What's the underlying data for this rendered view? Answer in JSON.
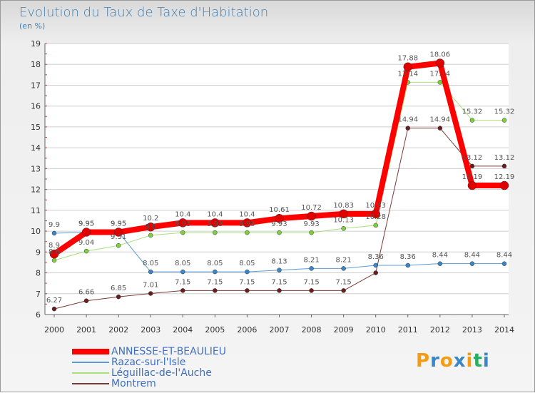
{
  "header": {
    "title": "Evolution du Taux de Taxe d'Habitation",
    "unit": "(en %)"
  },
  "colors": {
    "title": "#3f80b6",
    "axis_text": "#333333",
    "label_text": "#555555",
    "grid": "#cfcfcf"
  },
  "chart_data": {
    "type": "line",
    "x": [
      2000,
      2001,
      2002,
      2003,
      2004,
      2005,
      2006,
      2007,
      2008,
      2009,
      2010,
      2011,
      2012,
      2013,
      2014
    ],
    "ylim": [
      6,
      19
    ],
    "yticks": [
      6,
      7,
      8,
      9,
      10,
      11,
      12,
      13,
      14,
      15,
      16,
      17,
      18,
      19
    ],
    "grid": true,
    "legend_position": "bottom-left",
    "series": [
      {
        "name": "ANNESSE-ET-BEAULIEU",
        "color": "#ff0000",
        "marker_color": "#e00000",
        "line_width": 8,
        "marker_radius": 6,
        "values": [
          8.9,
          9.95,
          9.95,
          10.2,
          10.4,
          10.4,
          10.4,
          10.61,
          10.72,
          10.83,
          10.83,
          17.88,
          18.06,
          12.19,
          12.19
        ],
        "labels": [
          "8.9",
          "9.95",
          "9.95",
          "10.2",
          "10.4",
          "10.4",
          "10.4",
          "10.61",
          "10.72",
          "10.83",
          "10.83",
          "17.88",
          "18.06",
          "12.19",
          "12.19"
        ]
      },
      {
        "name": "Razac-sur-l'Isle",
        "color": "#5b9bd5",
        "marker_color": "#3a86c8",
        "line_width": 1,
        "marker_radius": 3,
        "values": [
          9.9,
          9.95,
          9.95,
          8.05,
          8.05,
          8.05,
          8.05,
          8.13,
          8.21,
          8.21,
          8.36,
          8.36,
          8.44,
          8.44,
          8.44
        ],
        "labels": [
          "9.9",
          "9.95",
          "9.95",
          "8.05",
          "8.05",
          "8.05",
          "8.05",
          "8.13",
          "8.21",
          "8.21",
          "8.36",
          "8.36",
          "8.44",
          "8.44",
          "8.44"
        ]
      },
      {
        "name": "Léguillac-de-l'Auche",
        "color": "#a8e07a",
        "marker_color": "#7fcf3c",
        "line_width": 1,
        "marker_radius": 3,
        "values": [
          8.6,
          9.04,
          9.31,
          9.8,
          9.93,
          9.93,
          9.93,
          9.93,
          9.93,
          10.13,
          10.28,
          17.14,
          17.14,
          15.32,
          15.32
        ],
        "labels": [
          "8.6",
          "9.04",
          "9.31",
          "9.8",
          "9.93",
          "9.93",
          "9.93",
          "9.93",
          "9.93",
          "10.13",
          "10.28",
          "17.14",
          "17.14",
          "15.32",
          "15.32"
        ]
      },
      {
        "name": "Montrem",
        "color": "#7a3a3a",
        "marker_color": "#6b1d1d",
        "line_width": 1,
        "marker_radius": 3,
        "values": [
          6.27,
          6.66,
          6.85,
          7.01,
          7.15,
          7.15,
          7.15,
          7.15,
          7.15,
          7.15,
          8.0,
          14.94,
          14.94,
          13.12,
          13.12
        ],
        "labels": [
          "6.27",
          "6.66",
          "6.85",
          "7.01",
          "7.15",
          "7.15",
          "7.15",
          "7.15",
          "7.15",
          "7.15",
          "",
          "14.94",
          "14.94",
          "13.12",
          "13.12"
        ]
      }
    ]
  },
  "legend": {
    "items": [
      {
        "label": "ANNESSE-ET-BEAULIEU",
        "color": "#ff0000",
        "thickness": 8
      },
      {
        "label": "Razac-sur-l'Isle",
        "color": "#5b9bd5",
        "thickness": 2
      },
      {
        "label": "Léguillac-de-l'Auche",
        "color": "#a8e07a",
        "thickness": 2
      },
      {
        "label": "Montrem",
        "color": "#7a3a3a",
        "thickness": 2
      }
    ]
  },
  "logo": {
    "letters": [
      "P",
      "r",
      "o",
      "x",
      "i",
      "t",
      "i"
    ],
    "colors": [
      "#f39c12",
      "#3a86c8",
      "#f39c12",
      "#3a86c8",
      "#f39c12",
      "#27ae60",
      "#3a86c8"
    ]
  }
}
